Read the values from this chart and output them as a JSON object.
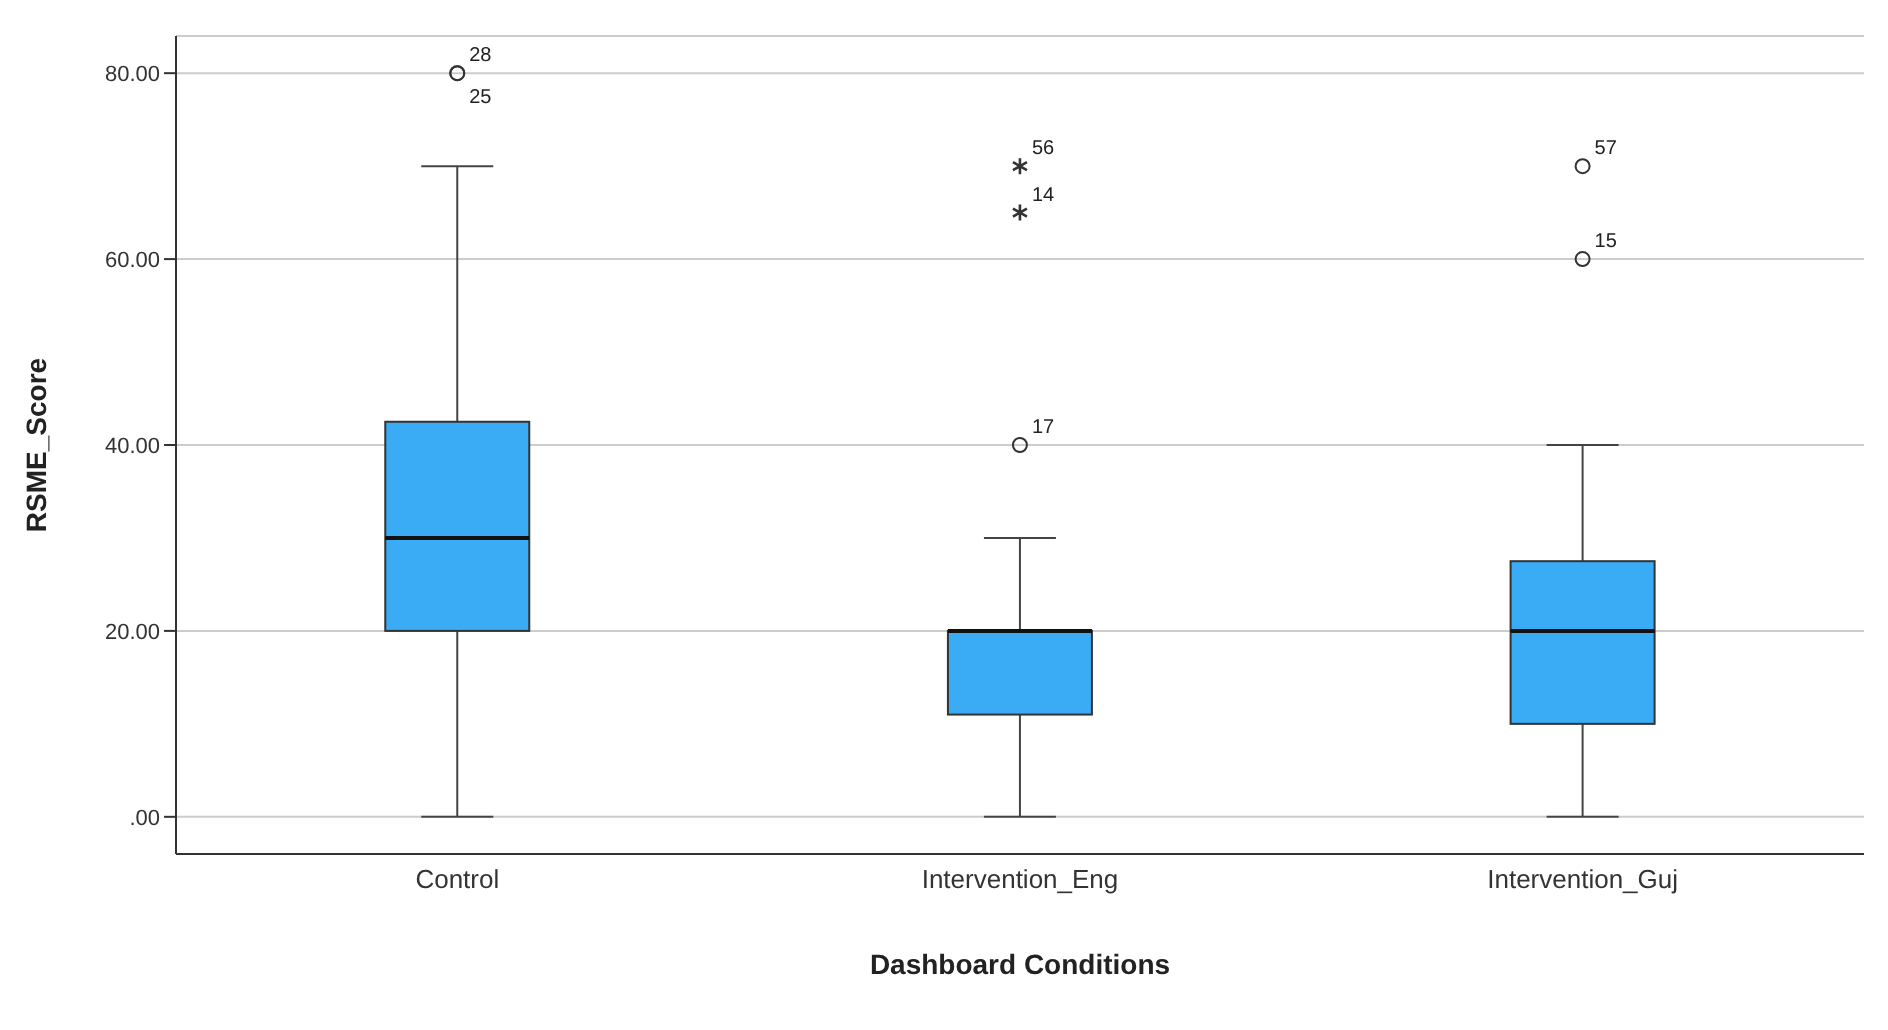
{
  "chart_data": {
    "type": "box",
    "xlabel": "Dashboard Conditions",
    "ylabel": "RSME_Score",
    "categories": [
      "Control",
      "Intervention_Eng",
      "Intervention_Guj"
    ],
    "color": "#3aabf5",
    "boxes": [
      {
        "low": 0,
        "q1": 20,
        "median": 30,
        "q3": 42.5,
        "high": 70,
        "outliers": [
          80,
          80
        ]
      },
      {
        "low": 0,
        "q1": 11,
        "median": 20,
        "q3": 20,
        "high": 30,
        "outliers": [
          40,
          65,
          70
        ]
      },
      {
        "low": 0,
        "q1": 10,
        "median": 20,
        "q3": 27.5,
        "high": 40,
        "outliers": [
          60,
          70
        ]
      }
    ],
    "ylim": [
      -4,
      84
    ],
    "yticks": [
      {
        "value": 0,
        "label": ".00"
      },
      {
        "value": 20,
        "label": "20.00"
      },
      {
        "value": 40,
        "label": "40.00"
      },
      {
        "value": 60,
        "label": "60.00"
      },
      {
        "value": 80,
        "label": "80.00"
      }
    ],
    "grid": "y",
    "annotations": [
      "28",
      "25",
      "17",
      "14",
      "56",
      "15",
      "57"
    ]
  }
}
